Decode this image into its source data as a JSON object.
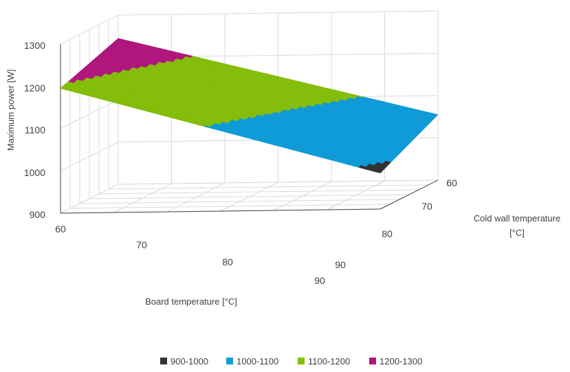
{
  "chart_data": {
    "type": "surface",
    "zlabel": "Maximum power [W]",
    "xlabel": "Board temperature [°C]",
    "ylabel_lines": [
      "Cold wall temperature",
      "[°C]"
    ],
    "zlim": [
      900,
      1300
    ],
    "z_ticks": [
      "900",
      "1000",
      "1100",
      "1200",
      "1300"
    ],
    "x_ticks": [
      "60",
      "70",
      "80",
      "90"
    ],
    "y_ticks": [
      "60",
      "70",
      "80",
      "90"
    ],
    "grid": true,
    "legend_position": "bottom",
    "bands": [
      {
        "name": "900-1000",
        "range": [
          900,
          1000
        ],
        "color": "#333333"
      },
      {
        "name": "1000-1100",
        "range": [
          1000,
          1100
        ],
        "color": "#0f9bd7"
      },
      {
        "name": "1100-1200",
        "range": [
          1100,
          1200
        ],
        "color": "#85bd0b"
      },
      {
        "name": "1200-1300",
        "range": [
          1200,
          1300
        ],
        "color": "#b0177c"
      }
    ],
    "surface": {
      "board_temperature": [
        60,
        90
      ],
      "cold_wall_temperature": [
        60,
        90
      ],
      "max_power_W": [
        [
          1245,
          1195
        ],
        [
          1055,
          985
        ]
      ],
      "note_rows": "rows = board temperature, cols = cold wall temperature"
    }
  }
}
